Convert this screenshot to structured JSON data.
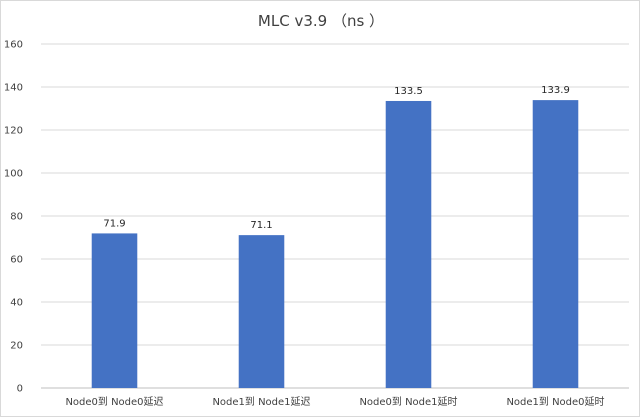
{
  "chart_data": {
    "type": "bar",
    "title": "MLC v3.9 （ns ）",
    "categories": [
      "Node0到 Node0延迟",
      "Node1到 Node1延迟",
      "Node0到 Node1延时",
      "Node1到 Node0延时"
    ],
    "values": [
      71.9,
      71.1,
      133.5,
      133.9
    ],
    "data_labels": [
      "71.9",
      "71.1",
      "133.5",
      "133.9"
    ],
    "xlabel": "",
    "ylabel": "",
    "ylim": [
      0,
      160
    ],
    "yticks": [
      0,
      20,
      40,
      60,
      80,
      100,
      120,
      140,
      160
    ],
    "grid": true,
    "legend": "none",
    "bar_color": "#4472C4"
  }
}
